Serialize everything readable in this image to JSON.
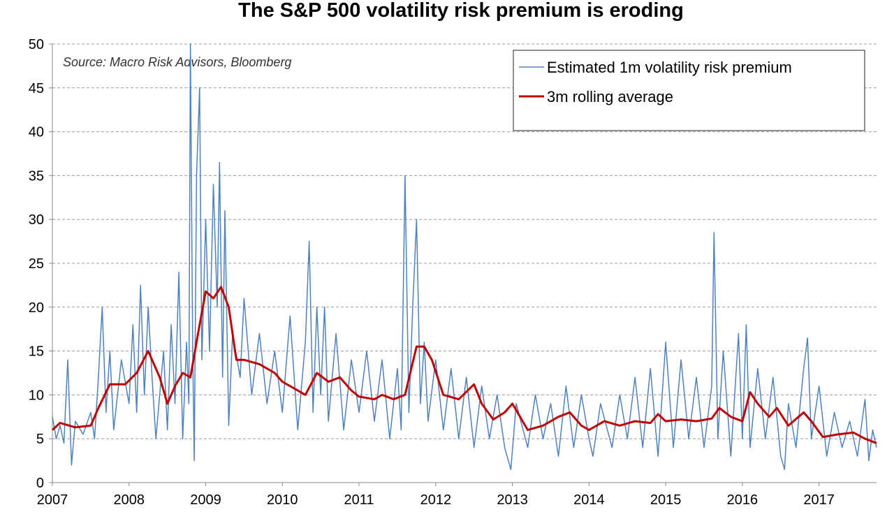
{
  "chart_data": {
    "type": "line",
    "title": "The S&P 500 volatility risk premium is eroding",
    "annotation": "Source: Macro Risk Advisors, Bloomberg",
    "xlim": [
      2007,
      2017.75
    ],
    "xticks": [
      2007,
      2008,
      2009,
      2010,
      2011,
      2012,
      2013,
      2014,
      2015,
      2016,
      2017
    ],
    "ylim": [
      0,
      50
    ],
    "yticks": [
      0,
      5,
      10,
      15,
      20,
      25,
      30,
      35,
      40,
      45,
      50
    ],
    "grid": true,
    "legend": "upper right",
    "series": [
      {
        "name": "Estimated 1m volatility risk premium",
        "color": "#4f81bd",
        "width": 1.5,
        "x": [
          2007.0,
          2007.05,
          2007.1,
          2007.15,
          2007.2,
          2007.25,
          2007.3,
          2007.4,
          2007.5,
          2007.55,
          2007.6,
          2007.65,
          2007.7,
          2007.75,
          2007.8,
          2007.9,
          2008.0,
          2008.05,
          2008.1,
          2008.15,
          2008.2,
          2008.25,
          2008.3,
          2008.35,
          2008.45,
          2008.5,
          2008.55,
          2008.6,
          2008.65,
          2008.7,
          2008.75,
          2008.78,
          2008.8,
          2008.83,
          2008.85,
          2008.88,
          2008.92,
          2008.95,
          2009.0,
          2009.05,
          2009.1,
          2009.15,
          2009.18,
          2009.22,
          2009.25,
          2009.3,
          2009.35,
          2009.45,
          2009.5,
          2009.6,
          2009.7,
          2009.8,
          2009.9,
          2010.0,
          2010.1,
          2010.2,
          2010.3,
          2010.35,
          2010.4,
          2010.45,
          2010.5,
          2010.55,
          2010.6,
          2010.7,
          2010.8,
          2010.9,
          2011.0,
          2011.1,
          2011.2,
          2011.3,
          2011.4,
          2011.5,
          2011.55,
          2011.6,
          2011.65,
          2011.7,
          2011.75,
          2011.8,
          2011.85,
          2011.9,
          2012.0,
          2012.1,
          2012.2,
          2012.3,
          2012.4,
          2012.5,
          2012.6,
          2012.7,
          2012.8,
          2012.9,
          2012.98,
          2013.05,
          2013.2,
          2013.3,
          2013.4,
          2013.5,
          2013.6,
          2013.7,
          2013.8,
          2013.9,
          2014.0,
          2014.05,
          2014.15,
          2014.3,
          2014.4,
          2014.5,
          2014.6,
          2014.7,
          2014.8,
          2014.9,
          2015.0,
          2015.1,
          2015.2,
          2015.3,
          2015.4,
          2015.5,
          2015.6,
          2015.63,
          2015.68,
          2015.75,
          2015.85,
          2015.95,
          2016.0,
          2016.05,
          2016.1,
          2016.2,
          2016.3,
          2016.4,
          2016.5,
          2016.55,
          2016.6,
          2016.7,
          2016.8,
          2016.85,
          2016.9,
          2017.0,
          2017.1,
          2017.2,
          2017.3,
          2017.4,
          2017.5,
          2017.6,
          2017.65,
          2017.7,
          2017.75
        ],
        "values": [
          7.5,
          5,
          6.5,
          4.5,
          14,
          2,
          7,
          5.5,
          8,
          5,
          12,
          20,
          8,
          15,
          6,
          14,
          9,
          18,
          8,
          22.5,
          10,
          20,
          12,
          5,
          15,
          6,
          18,
          9,
          24,
          5,
          16,
          9,
          50,
          15,
          2.5,
          35,
          45,
          14,
          30,
          15,
          34,
          20,
          36.5,
          12,
          31,
          6.5,
          17,
          12,
          21,
          10,
          17,
          9,
          15,
          8,
          19,
          6,
          16,
          27.5,
          8,
          20,
          10,
          20,
          7,
          17,
          6,
          14,
          8,
          15,
          7,
          14,
          5,
          13,
          6,
          35,
          8,
          20,
          30,
          9,
          16,
          7,
          14,
          6,
          13,
          5,
          12,
          4,
          11,
          5,
          10,
          4,
          1.5,
          9,
          4,
          10,
          5,
          9,
          3,
          11,
          4,
          10,
          5,
          3,
          9,
          4,
          10,
          5,
          12,
          4,
          13,
          3,
          16,
          4,
          14,
          5,
          12,
          4,
          11,
          28.5,
          5,
          15,
          3,
          17,
          5,
          18,
          4,
          13,
          5,
          12,
          3,
          1.5,
          9,
          4,
          13,
          16.5,
          5,
          11,
          3,
          8,
          4,
          7,
          3,
          9.5,
          2.5,
          6,
          4
        ]
      },
      {
        "name": "3m rolling average",
        "color": "#c00000",
        "width": 3,
        "x": [
          2007.0,
          2007.1,
          2007.3,
          2007.5,
          2007.6,
          2007.75,
          2007.95,
          2008.1,
          2008.25,
          2008.4,
          2008.5,
          2008.6,
          2008.7,
          2008.8,
          2008.9,
          2009.0,
          2009.1,
          2009.2,
          2009.3,
          2009.4,
          2009.5,
          2009.7,
          2009.9,
          2010.0,
          2010.2,
          2010.3,
          2010.45,
          2010.6,
          2010.75,
          2010.9,
          2011.0,
          2011.2,
          2011.3,
          2011.45,
          2011.6,
          2011.75,
          2011.85,
          2011.95,
          2012.1,
          2012.3,
          2012.5,
          2012.6,
          2012.75,
          2012.9,
          2013.0,
          2013.1,
          2013.2,
          2013.4,
          2013.6,
          2013.75,
          2013.9,
          2014.0,
          2014.2,
          2014.4,
          2014.6,
          2014.8,
          2014.9,
          2015.0,
          2015.2,
          2015.4,
          2015.6,
          2015.7,
          2015.85,
          2016.0,
          2016.1,
          2016.2,
          2016.35,
          2016.45,
          2016.6,
          2016.8,
          2016.9,
          2017.05,
          2017.25,
          2017.45,
          2017.6,
          2017.75
        ],
        "values": [
          6,
          6.8,
          6.3,
          6.5,
          8.5,
          11.2,
          11.2,
          12.5,
          15,
          12,
          9,
          11,
          12.5,
          12,
          17,
          21.8,
          21,
          22.3,
          20,
          14,
          14,
          13.5,
          12.5,
          11.5,
          10.5,
          10,
          12.5,
          11.5,
          12,
          10.5,
          9.8,
          9.5,
          10,
          9.5,
          10,
          15.5,
          15.5,
          14,
          10,
          9.5,
          11.2,
          9,
          7.2,
          8,
          9,
          7.5,
          6,
          6.5,
          7.5,
          8,
          6.5,
          6,
          7,
          6.5,
          7,
          6.8,
          7.8,
          7,
          7.2,
          7,
          7.3,
          8.5,
          7.5,
          7,
          10.3,
          9,
          7.5,
          8.5,
          6.5,
          8,
          7,
          5.2,
          5.5,
          5.7,
          5,
          4.5
        ]
      }
    ]
  }
}
